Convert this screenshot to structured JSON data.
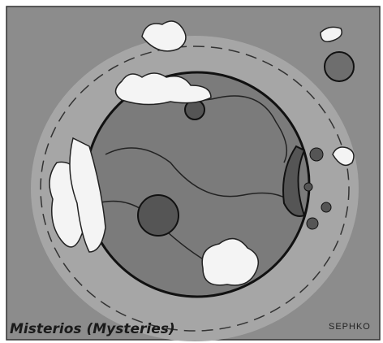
{
  "caption": "Misterios (Mysteries)",
  "signature": "SEPHKO"
}
